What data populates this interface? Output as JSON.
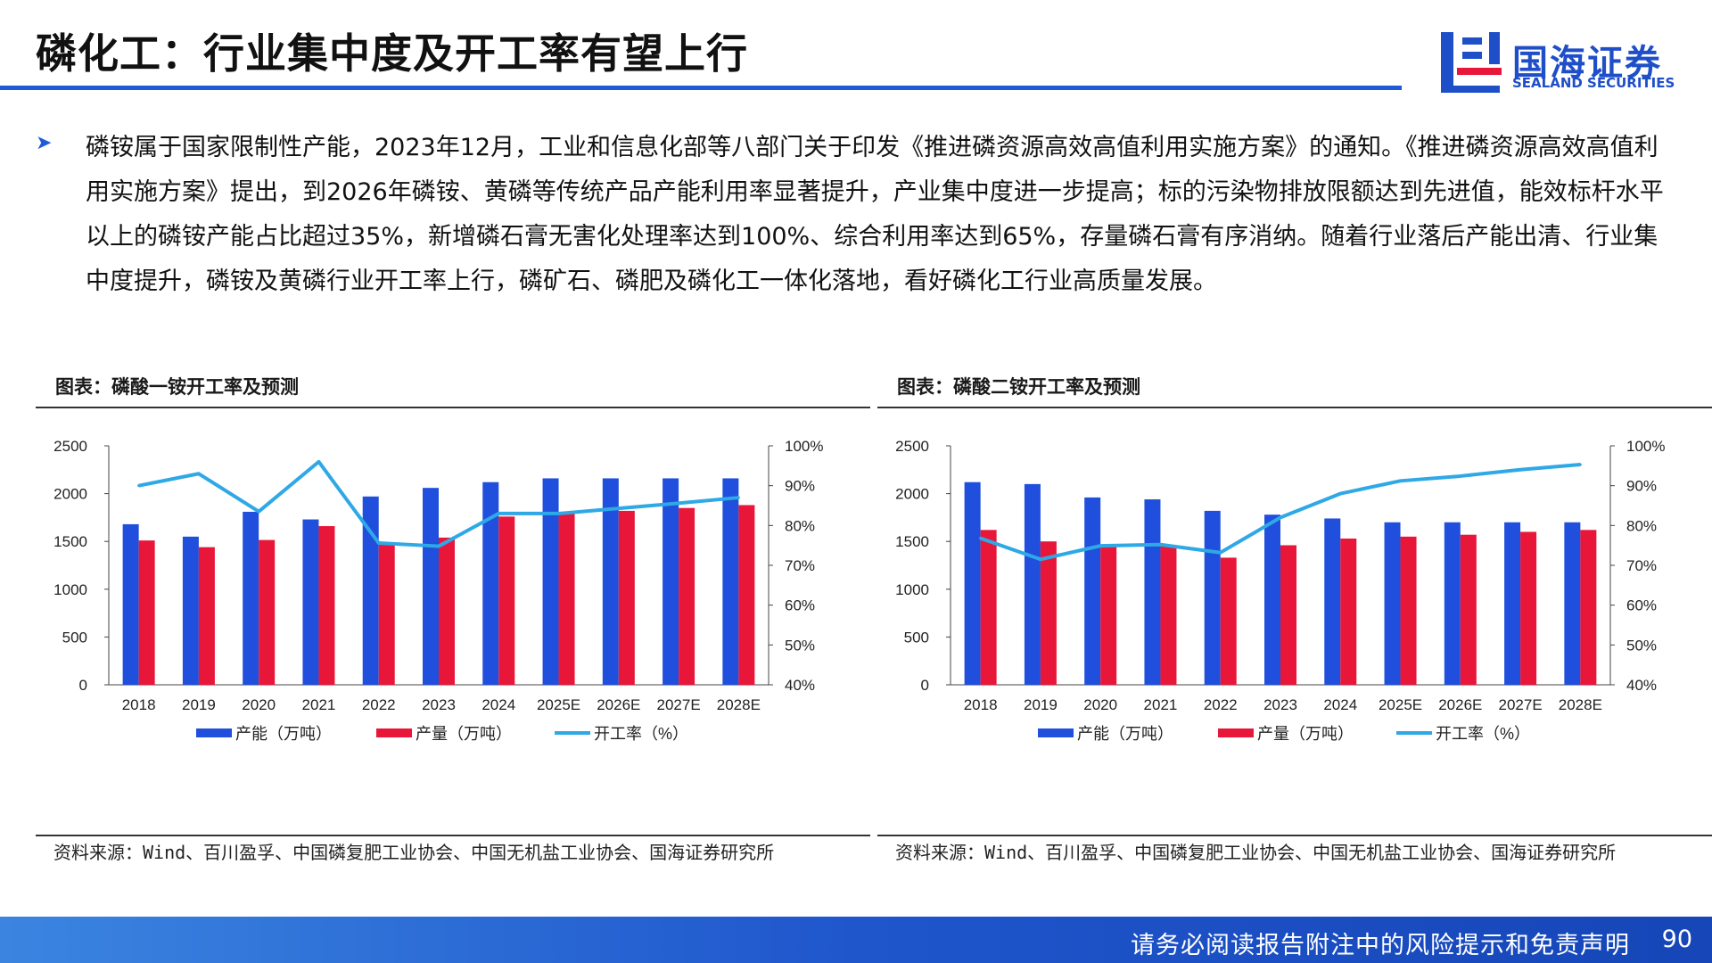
{
  "header": {
    "title": "磷化工：行业集中度及开工率有望上行",
    "logo_cn": "国海证券",
    "logo_en": "SEALAND SECURITIES"
  },
  "body": {
    "bullet_icon": "arrow-bullet-icon",
    "paragraph": "磷铵属于国家限制性产能，2023年12月，工业和信息化部等八部门关于印发《推进磷资源高效高值利用实施方案》的通知。《推进磷资源高效高值利用实施方案》提出，到2026年磷铵、黄磷等传统产品产能利用率显著提升，产业集中度进一步提高；标的污染物排放限额达到先进值，能效标杆水平以上的磷铵产能占比超过35%，新增磷石膏无害化处理率达到100%、综合利用率达到65%，存量磷石膏有序消纳。随着行业落后产能出清、行业集中度提升，磷铵及黄磷行业开工率上行，磷矿石、磷肥及磷化工一体化落地，看好磷化工行业高质量发展。"
  },
  "chart_data": [
    {
      "type": "bar",
      "title": "图表：磷酸一铵开工率及预测",
      "categories": [
        "2018",
        "2019",
        "2020",
        "2021",
        "2022",
        "2023",
        "2024",
        "2025E",
        "2026E",
        "2027E",
        "2028E"
      ],
      "series": [
        {
          "name": "产能（万吨）",
          "type": "bar",
          "axis": "left",
          "color": "#1f4fdc",
          "values": [
            1680,
            1550,
            1810,
            1730,
            1970,
            2060,
            2120,
            2160,
            2160,
            2160,
            2160
          ]
        },
        {
          "name": "产量（万吨）",
          "type": "bar",
          "axis": "left",
          "color": "#e8173a",
          "values": [
            1510,
            1440,
            1515,
            1660,
            1490,
            1540,
            1760,
            1790,
            1820,
            1850,
            1880
          ]
        },
        {
          "name": "开工率（%）",
          "type": "line",
          "axis": "right",
          "color": "#2fa8e6",
          "values": [
            90.0,
            93.0,
            83.5,
            96.0,
            75.6,
            74.8,
            83.0,
            83.0,
            84.3,
            85.6,
            87.0
          ]
        }
      ],
      "yleft": {
        "min": 0,
        "max": 2500,
        "ticks": [
          "0",
          "500",
          "1000",
          "1500",
          "2000",
          "2500"
        ]
      },
      "yright": {
        "min": 40,
        "max": 100,
        "ticks": [
          "40%",
          "50%",
          "60%",
          "70%",
          "80%",
          "90%",
          "100%"
        ]
      },
      "legend_position": "bottom",
      "grid": false,
      "source": "资料来源：Wind、百川盈孚、中国磷复肥工业协会、中国无机盐工业协会、国海证券研究所"
    },
    {
      "type": "bar",
      "title": "图表：磷酸二铵开工率及预测",
      "categories": [
        "2018",
        "2019",
        "2020",
        "2021",
        "2022",
        "2023",
        "2024",
        "2025E",
        "2026E",
        "2027E",
        "2028E"
      ],
      "series": [
        {
          "name": "产能（万吨）",
          "type": "bar",
          "axis": "left",
          "color": "#1f4fdc",
          "values": [
            2120,
            2100,
            1960,
            1940,
            1820,
            1780,
            1740,
            1700,
            1700,
            1700,
            1700
          ]
        },
        {
          "name": "产量（万吨）",
          "type": "bar",
          "axis": "left",
          "color": "#e8173a",
          "values": [
            1620,
            1500,
            1470,
            1460,
            1330,
            1460,
            1530,
            1550,
            1570,
            1600,
            1620
          ]
        },
        {
          "name": "开工率（%）",
          "type": "line",
          "axis": "right",
          "color": "#2fa8e6",
          "values": [
            76.8,
            71.5,
            74.9,
            75.2,
            73.2,
            82.0,
            88.0,
            91.2,
            92.4,
            94.0,
            95.3
          ]
        }
      ],
      "yleft": {
        "min": 0,
        "max": 2500,
        "ticks": [
          "0",
          "500",
          "1000",
          "1500",
          "2000",
          "2500"
        ]
      },
      "yright": {
        "min": 40,
        "max": 100,
        "ticks": [
          "40%",
          "50%",
          "60%",
          "70%",
          "80%",
          "90%",
          "100%"
        ]
      },
      "legend_position": "bottom",
      "grid": false,
      "source": "资料来源：Wind、百川盈孚、中国磷复肥工业协会、中国无机盐工业协会、国海证券研究所"
    }
  ],
  "footer": {
    "disclaimer": "请务必阅读报告附注中的风险提示和免责声明",
    "page_number": "90"
  },
  "colors": {
    "brand_blue": "#1f5bd6",
    "capacity_bar": "#1f4fdc",
    "output_bar": "#e8173a",
    "rate_line": "#2fa8e6"
  }
}
